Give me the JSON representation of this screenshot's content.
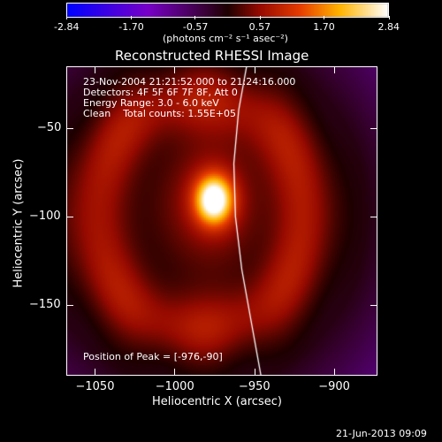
{
  "colorbar": {
    "min": -2.84,
    "max": 2.84,
    "tick_labels": [
      "-2.84",
      "-1.70",
      "-0.57",
      "0.57",
      "1.70",
      "2.84"
    ],
    "units": "(photons cm⁻² s⁻¹ asec⁻²)"
  },
  "chart_data": {
    "type": "heatmap",
    "title": "Reconstructed RHESSI Image",
    "xlabel": "Heliocentric X (arcsec)",
    "ylabel": "Heliocentric Y (arcsec)",
    "xlim": [
      -1068,
      -873
    ],
    "ylim": [
      -190,
      -15
    ],
    "x_tick_labels": [
      "−1050",
      "−1000",
      "−950",
      "−900"
    ],
    "x_ticks": [
      -1050,
      -1000,
      -950,
      -900
    ],
    "y_tick_labels": [
      "−50",
      "−100",
      "−150"
    ],
    "y_ticks": [
      -50,
      -100,
      -150
    ],
    "peak": [
      -976,
      -90
    ],
    "info_lines": [
      "23-Nov-2004 21:21:52.000 to 21:24:16.000",
      "Detectors: 4F 5F 6F 7F 8F, Att 0",
      "Energy Range: 3.0 - 6.0 keV",
      "Clean    Total counts: 1.55E+05"
    ],
    "peak_label": "Position of Peak = [-976,-90]",
    "limb_curve": [
      [
        -955,
        -15
      ],
      [
        -960,
        -40
      ],
      [
        -963,
        -70
      ],
      [
        -962,
        -100
      ],
      [
        -958,
        -130
      ],
      [
        -952,
        -160
      ],
      [
        -946,
        -190
      ]
    ]
  },
  "footer": {
    "timestamp": "21-Jun-2013 09:09"
  }
}
